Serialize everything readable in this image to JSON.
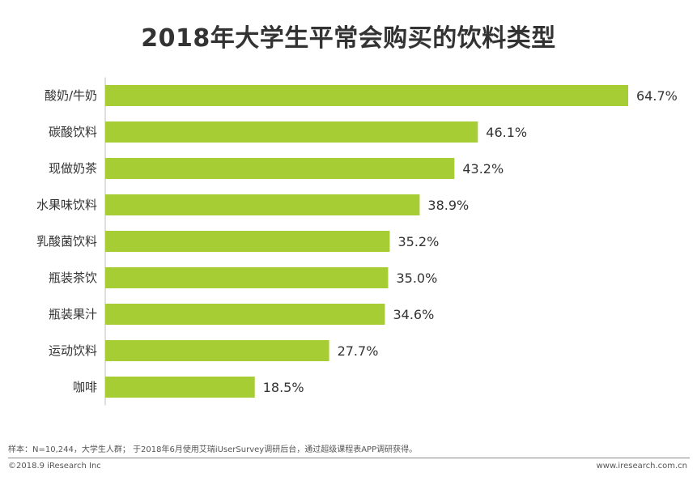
{
  "chart_data": {
    "type": "bar",
    "orientation": "horizontal",
    "title": "2018年大学生平常会购买的饮料类型",
    "categories": [
      "酸奶/牛奶",
      "碳酸饮料",
      "现做奶茶",
      "水果味饮料",
      "乳酸菌饮料",
      "瓶装茶饮",
      "瓶装果汁",
      "运动饮料",
      "咖啡"
    ],
    "values": [
      64.7,
      46.1,
      43.2,
      38.9,
      35.2,
      35.0,
      34.6,
      27.7,
      18.5
    ],
    "value_labels": [
      "64.7%",
      "46.1%",
      "43.2%",
      "38.9%",
      "35.2%",
      "35.0%",
      "34.6%",
      "27.7%",
      "18.5%"
    ],
    "unit": "%",
    "xlim": [
      0,
      64.7
    ],
    "xlabel": "",
    "ylabel": "",
    "grid": false,
    "bar_color": "#a6cd34",
    "axis_color": "#bfbfbf"
  },
  "footer": {
    "note": "样本：N=10,244，大学生人群；  于2018年6月使用艾瑞iUserSurvey调研后台，通过超级课程表APP调研获得。",
    "copyright": "©2018.9 iResearch Inc",
    "website": "www.iresearch.com.cn"
  }
}
